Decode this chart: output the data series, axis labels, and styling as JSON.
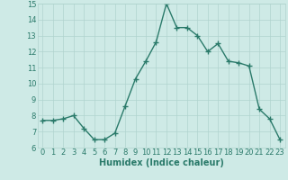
{
  "x": [
    0,
    1,
    2,
    3,
    4,
    5,
    6,
    7,
    8,
    9,
    10,
    11,
    12,
    13,
    14,
    15,
    16,
    17,
    18,
    19,
    20,
    21,
    22,
    23
  ],
  "y": [
    7.7,
    7.7,
    7.8,
    8.0,
    7.2,
    6.5,
    6.5,
    6.9,
    8.6,
    10.3,
    11.4,
    12.6,
    15.0,
    13.5,
    13.5,
    13.0,
    12.0,
    12.5,
    11.4,
    11.3,
    11.1,
    8.4,
    7.8,
    6.5
  ],
  "line_color": "#2a7a6a",
  "marker": "+",
  "marker_size": 4,
  "bg_color": "#ceeae6",
  "grid_color": "#b0d4ce",
  "xlabel": "Humidex (Indice chaleur)",
  "ylim": [
    6,
    15
  ],
  "xlim": [
    -0.5,
    23.5
  ],
  "yticks": [
    6,
    7,
    8,
    9,
    10,
    11,
    12,
    13,
    14,
    15
  ],
  "xticks": [
    0,
    1,
    2,
    3,
    4,
    5,
    6,
    7,
    8,
    9,
    10,
    11,
    12,
    13,
    14,
    15,
    16,
    17,
    18,
    19,
    20,
    21,
    22,
    23
  ],
  "tick_fontsize": 6,
  "xlabel_fontsize": 7,
  "line_width": 1.0
}
